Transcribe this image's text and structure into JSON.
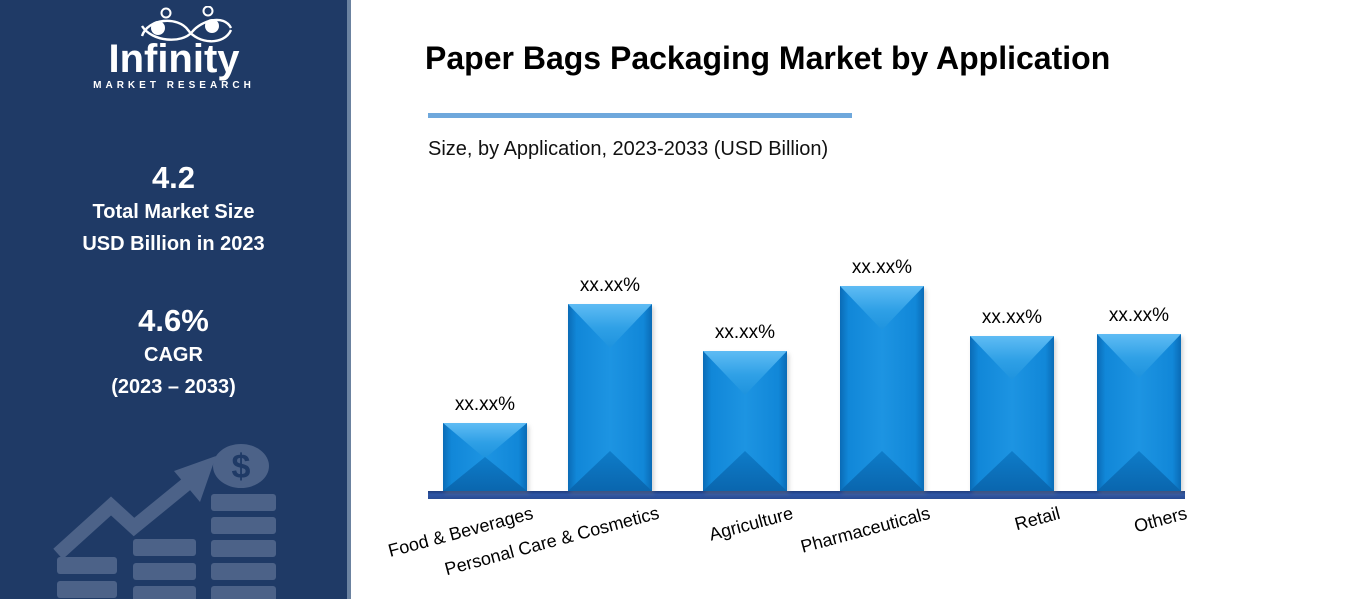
{
  "sidebar": {
    "logo": {
      "brand": "Infinity",
      "tagline": "MARKET RESEARCH"
    },
    "stats": [
      {
        "value": "4.2",
        "lines": [
          "Total Market Size",
          "USD Billion in 2023"
        ]
      },
      {
        "value": "4.6%",
        "lines": [
          "CAGR",
          "(2023 – 2033)"
        ]
      }
    ],
    "icons": [
      "infinity-icon",
      "growth-arrow-icon",
      "dollar-coin-icon"
    ],
    "colors": {
      "background": "#1F3A66",
      "edge_strip": "#6B82A0",
      "graphic": "#4C6288",
      "text": "#FFFFFF"
    }
  },
  "header": {
    "title": "Paper Bags Packaging Market by Application",
    "subtitle": "Size, by Application, 2023-2033 (USD Billion)",
    "underline_color": "#6FA8DC"
  },
  "chart_data": {
    "type": "bar",
    "title": "Paper Bags Packaging Market by Application",
    "subtitle": "Size, by Application, 2023-2033 (USD Billion)",
    "categories": [
      "Food & Beverages",
      "Personal Care & Cosmetics",
      "Agriculture",
      "Pharmaceuticals",
      "Retail",
      "Others"
    ],
    "series": [
      {
        "name": "Size by Application",
        "value_labels": [
          "xx.xx%",
          "xx.xx%",
          "xx.xx%",
          "xx.xx%",
          "xx.xx%",
          "xx.xx%"
        ],
        "relative_heights": [
          68,
          187,
          140,
          205,
          155,
          157
        ]
      }
    ],
    "values_masked": true,
    "xlabel": "",
    "ylabel": "",
    "grid": false,
    "legend": false,
    "y_axis_shown": false,
    "bar_color": "#0F82D4",
    "baseline_color": "#2A4C94",
    "label_color": "#000000"
  }
}
